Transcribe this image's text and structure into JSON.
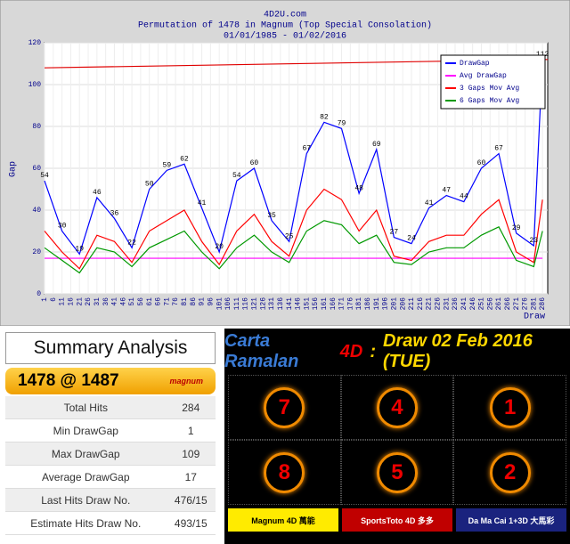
{
  "chart_data": {
    "type": "line",
    "site": "4D2U.com",
    "title": "Permutation of 1478 in Magnum (Top Special Consolation)",
    "subtitle": "01/01/1985 - 01/02/2016",
    "ylabel": "Gap",
    "xlabel": "Draw",
    "x": [
      1,
      11,
      21,
      31,
      41,
      51,
      61,
      71,
      81,
      91,
      101,
      111,
      121,
      131,
      141,
      151,
      161,
      171,
      181,
      191,
      201,
      211,
      221,
      231,
      241,
      251,
      261,
      271,
      281,
      286
    ],
    "series": [
      {
        "name": "DrawGap",
        "color": "#0000ff",
        "values": [
          54,
          30,
          19,
          46,
          36,
          22,
          50,
          59,
          62,
          41,
          20,
          54,
          60,
          35,
          25,
          67,
          82,
          79,
          48,
          69,
          27,
          24,
          41,
          47,
          44,
          60,
          67,
          29,
          23,
          112
        ]
      },
      {
        "name": "Avg DrawGap",
        "color": "#ff00ff",
        "values": [
          17,
          17,
          17,
          17,
          17,
          17,
          17,
          17,
          17,
          17,
          17,
          17,
          17,
          17,
          17,
          17,
          17,
          17,
          17,
          17,
          17,
          17,
          17,
          17,
          17,
          17,
          17,
          17,
          17,
          17
        ]
      },
      {
        "name": "3 Gaps Mov Avg",
        "color": "#ff0000",
        "values": [
          30,
          20,
          12,
          28,
          25,
          15,
          30,
          35,
          40,
          25,
          14,
          30,
          38,
          25,
          18,
          40,
          50,
          45,
          30,
          40,
          18,
          16,
          25,
          28,
          28,
          38,
          45,
          20,
          15,
          45
        ]
      },
      {
        "name": "6 Gaps Mov Avg",
        "color": "#009900",
        "values": [
          22,
          16,
          10,
          22,
          20,
          13,
          22,
          26,
          30,
          20,
          12,
          22,
          28,
          20,
          15,
          30,
          35,
          33,
          24,
          28,
          15,
          14,
          20,
          22,
          22,
          28,
          32,
          16,
          13,
          30
        ]
      }
    ],
    "top_line": {
      "color": "#e00000",
      "values": [
        108,
        112
      ]
    },
    "xlim": [
      1,
      289
    ],
    "ylim": [
      0,
      120
    ],
    "xticks": [
      1,
      6,
      11,
      16,
      21,
      26,
      31,
      36,
      41,
      46,
      51,
      56,
      61,
      66,
      71,
      76,
      81,
      86,
      91,
      96,
      101,
      106,
      111,
      116,
      121,
      126,
      131,
      136,
      141,
      146,
      151,
      156,
      161,
      166,
      171,
      176,
      181,
      186,
      191,
      196,
      201,
      206,
      211,
      216,
      221,
      226,
      231,
      236,
      241,
      246,
      251,
      256,
      261,
      266,
      271,
      276,
      281,
      286
    ],
    "yticks": [
      0,
      20,
      40,
      60,
      80,
      100,
      120
    ],
    "grid": true,
    "legend": "top-right"
  },
  "summary": {
    "title": "Summary Analysis",
    "header": "1478 @ 1487",
    "logo": "magnum",
    "rows": [
      [
        "Total Hits",
        "284"
      ],
      [
        "Min DrawGap",
        "1"
      ],
      [
        "Max DrawGap",
        "109"
      ],
      [
        "Average DrawGap",
        "17"
      ],
      [
        "Last Hits Draw No.",
        "476/15"
      ],
      [
        "Estimate Hits Draw No.",
        "493/15"
      ]
    ]
  },
  "forecast": {
    "title": "Carta Ramalan",
    "title_4d": "4D",
    "colon": ":",
    "draw": "Draw 02 Feb 2016 (TUE)",
    "digits": [
      "7",
      "4",
      "1",
      "8",
      "5",
      "2"
    ],
    "operators": [
      "Magnum 4D 萬能",
      "SportsToto 4D 多多",
      "Da Ma Cai 1+3D 大馬彩"
    ]
  }
}
